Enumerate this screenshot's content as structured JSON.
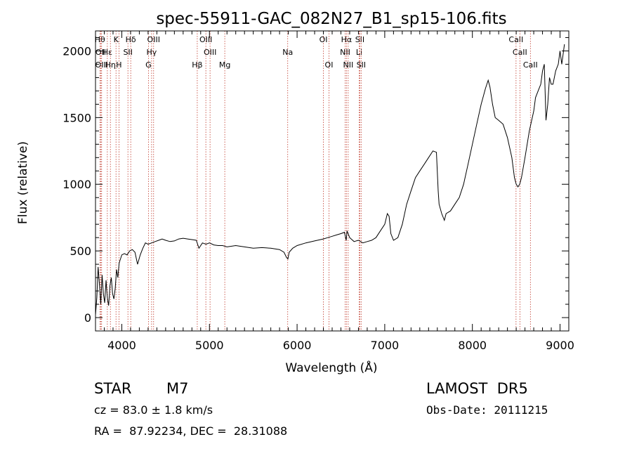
{
  "chart_data": {
    "type": "line",
    "title": "spec-55911-GAC_082N27_B1_sp15-106.fits",
    "xlabel": "Wavelength (Å)",
    "ylabel": "Flux (relative)",
    "xlim": [
      3700,
      9100
    ],
    "ylim": [
      -100,
      2150
    ],
    "xticks": [
      4000,
      5000,
      6000,
      7000,
      8000,
      9000
    ],
    "yticks": [
      0,
      500,
      1000,
      1500,
      2000
    ],
    "grid": false,
    "line_color": "#000000",
    "marker_color": "#c0392b",
    "series": [
      {
        "x": [
          3700,
          3715,
          3730,
          3745,
          3760,
          3775,
          3790,
          3805,
          3820,
          3835,
          3850,
          3865,
          3880,
          3895,
          3910,
          3925,
          3940,
          3955,
          3970,
          3985,
          4000,
          4030,
          4060,
          4090,
          4120,
          4150,
          4180,
          4210,
          4240,
          4270,
          4300,
          4340,
          4380,
          4420,
          4460,
          4500,
          4550,
          4600,
          4650,
          4700,
          4750,
          4800,
          4850,
          4880,
          4920,
          4960,
          5000,
          5050,
          5100,
          5150,
          5200,
          5300,
          5400,
          5500,
          5600,
          5700,
          5800,
          5850,
          5880,
          5895,
          5910,
          5950,
          6000,
          6100,
          6200,
          6300,
          6350,
          6400,
          6450,
          6500,
          6540,
          6560,
          6570,
          6600,
          6650,
          6700,
          6750,
          6800,
          6850,
          6900,
          6950,
          7000,
          7030,
          7050,
          7070,
          7100,
          7150,
          7200,
          7250,
          7300,
          7350,
          7400,
          7450,
          7500,
          7550,
          7590,
          7610,
          7620,
          7650,
          7680,
          7700,
          7750,
          7800,
          7850,
          7900,
          7950,
          8000,
          8050,
          8100,
          8150,
          8180,
          8200,
          8230,
          8260,
          8300,
          8350,
          8400,
          8450,
          8480,
          8500,
          8520,
          8540,
          8560,
          8600,
          8650,
          8700,
          8720,
          8750,
          8780,
          8800,
          8820,
          8840,
          8860,
          8880,
          8900,
          8920,
          8950,
          8980,
          9000,
          9020,
          9050
        ],
        "y": [
          20,
          150,
          380,
          250,
          100,
          320,
          180,
          110,
          280,
          150,
          90,
          240,
          300,
          180,
          140,
          220,
          360,
          300,
          410,
          440,
          470,
          480,
          470,
          500,
          510,
          490,
          400,
          470,
          520,
          560,
          550,
          560,
          570,
          580,
          590,
          580,
          570,
          575,
          590,
          595,
          590,
          585,
          580,
          520,
          560,
          550,
          560,
          545,
          540,
          540,
          530,
          540,
          530,
          520,
          525,
          520,
          510,
          490,
          450,
          440,
          490,
          520,
          540,
          560,
          575,
          590,
          600,
          610,
          620,
          630,
          640,
          580,
          650,
          600,
          570,
          580,
          560,
          570,
          580,
          600,
          650,
          700,
          780,
          760,
          630,
          580,
          600,
          700,
          850,
          950,
          1050,
          1100,
          1150,
          1200,
          1250,
          1240,
          950,
          850,
          780,
          730,
          780,
          800,
          850,
          900,
          1000,
          1150,
          1300,
          1450,
          1600,
          1720,
          1780,
          1730,
          1600,
          1500,
          1480,
          1450,
          1350,
          1200,
          1050,
          1000,
          980,
          1000,
          1050,
          1200,
          1400,
          1550,
          1650,
          1700,
          1750,
          1850,
          1900,
          1480,
          1600,
          1800,
          1750,
          1750,
          1850,
          1900,
          2000,
          1900,
          2050
        ]
      }
    ],
    "line_markers": [
      {
        "x": 3750,
        "row": 0,
        "label": "Hθ"
      },
      {
        "x": 3760,
        "row": 1,
        "label": "OII"
      },
      {
        "x": 3770,
        "row": 2,
        "label": "OIII"
      },
      {
        "x": 3835,
        "row": 1,
        "label": "Hε"
      },
      {
        "x": 3870,
        "row": 2,
        "label": "Hη"
      },
      {
        "x": 3934,
        "row": 0,
        "label": "K"
      },
      {
        "x": 3968,
        "row": 2,
        "label": "H"
      },
      {
        "x": 4070,
        "row": 1,
        "label": "SII"
      },
      {
        "x": 4102,
        "row": 0,
        "label": "Hδ"
      },
      {
        "x": 4304,
        "row": 2,
        "label": "G"
      },
      {
        "x": 4340,
        "row": 1,
        "label": "Hγ"
      },
      {
        "x": 4363,
        "row": 0,
        "label": "OIII"
      },
      {
        "x": 4861,
        "row": 2,
        "label": "Hβ"
      },
      {
        "x": 4959,
        "row": 0,
        "label": "OIII"
      },
      {
        "x": 5007,
        "row": 1,
        "label": "OIII"
      },
      {
        "x": 5175,
        "row": 2,
        "label": "Mg"
      },
      {
        "x": 5893,
        "row": 1,
        "label": "Na"
      },
      {
        "x": 6300,
        "row": 0,
        "label": "OI"
      },
      {
        "x": 6364,
        "row": 2,
        "label": "OI"
      },
      {
        "x": 6548,
        "row": 1,
        "label": "NII"
      },
      {
        "x": 6563,
        "row": 0,
        "label": "Hα"
      },
      {
        "x": 6583,
        "row": 2,
        "label": "NII"
      },
      {
        "x": 6708,
        "row": 1,
        "label": "Li"
      },
      {
        "x": 6716,
        "row": 0,
        "label": "SII"
      },
      {
        "x": 6731,
        "row": 2,
        "label": "SII"
      },
      {
        "x": 8498,
        "row": 0,
        "label": "CaII"
      },
      {
        "x": 8542,
        "row": 1,
        "label": "CaII"
      },
      {
        "x": 8662,
        "row": 2,
        "label": "CaII"
      }
    ]
  },
  "info": {
    "object_type": "STAR",
    "subclass": "M7",
    "survey": "LAMOST  DR5",
    "cz": "cz = 83.0 ± 1.8 km/s",
    "obs_date": "Obs-Date: 20111215",
    "radec": "RA =  87.92234, DEC =  28.31088"
  }
}
